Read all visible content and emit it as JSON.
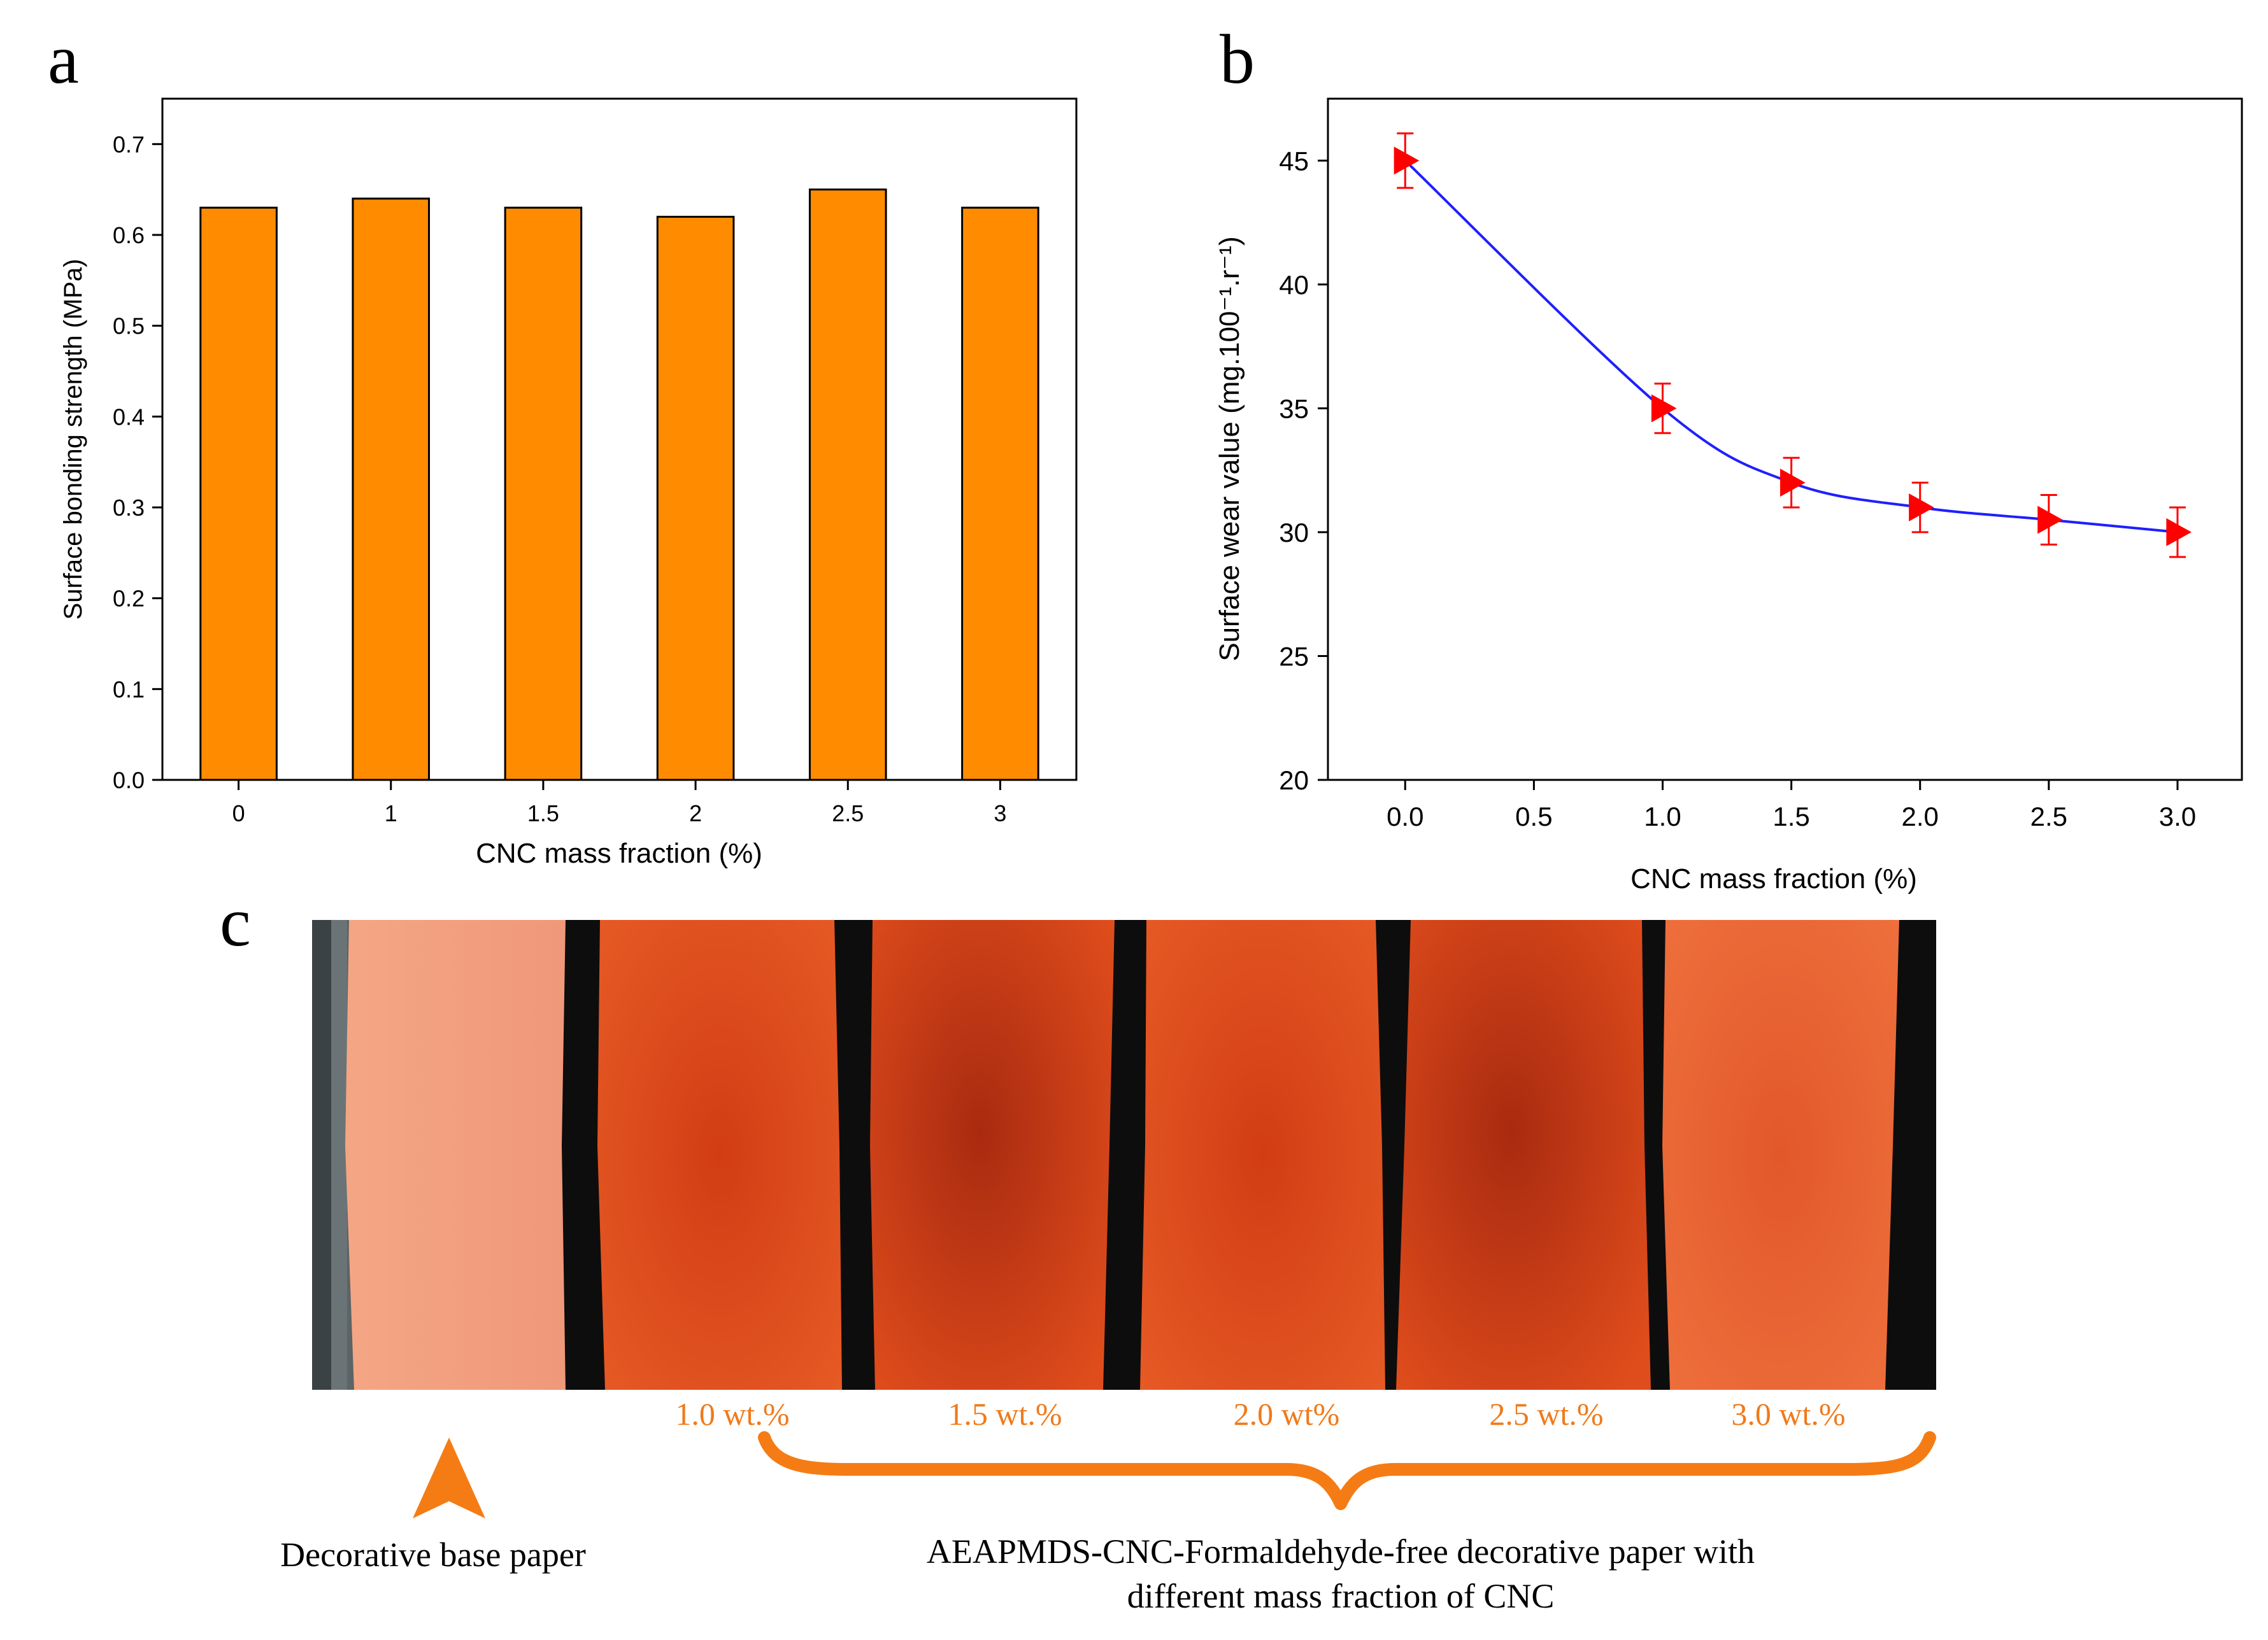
{
  "panels": {
    "a": {
      "letter": "a",
      "chart_data": {
        "type": "bar",
        "categories": [
          "0",
          "1",
          "1.5",
          "2",
          "2.5",
          "3"
        ],
        "values": [
          0.63,
          0.64,
          0.63,
          0.62,
          0.65,
          0.63
        ],
        "xlabel": "CNC mass fraction (%)",
        "ylabel": "Surface bonding strength (MPa)",
        "ylim": [
          0,
          0.75
        ],
        "yticks": [
          0.0,
          0.1,
          0.2,
          0.3,
          0.4,
          0.5,
          0.6,
          0.7
        ],
        "ytick_labels": [
          "0.0",
          "0.1",
          "0.2",
          "0.3",
          "0.4",
          "0.5",
          "0.6",
          "0.7"
        ],
        "bar_color": "#ff8c00",
        "grid": false
      }
    },
    "b": {
      "letter": "b",
      "chart_data": {
        "type": "line",
        "x": [
          0.0,
          1.0,
          1.5,
          2.0,
          2.5,
          3.0
        ],
        "y": [
          45,
          35,
          32,
          31,
          30.5,
          30
        ],
        "error": [
          1.1,
          1.0,
          1.0,
          1.0,
          1.0,
          1.0
        ],
        "xlabel": "CNC mass fraction (%)",
        "ylabel": "Surface wear value (mg.100⁻¹.r⁻¹)",
        "xlim": [
          -0.3,
          3.25
        ],
        "ylim": [
          20,
          47.5
        ],
        "xticks": [
          0.0,
          0.5,
          1.0,
          1.5,
          2.0,
          2.5,
          3.0
        ],
        "xtick_labels": [
          "0.0",
          "0.5",
          "1.0",
          "1.5",
          "2.0",
          "2.5",
          "3.0"
        ],
        "yticks": [
          20,
          25,
          30,
          35,
          40,
          45
        ],
        "ytick_labels": [
          "20",
          "25",
          "30",
          "35",
          "40",
          "45"
        ],
        "line_color": "#1f1fff",
        "marker_color": "#ff0000",
        "grid": false
      }
    },
    "c": {
      "letter": "c",
      "sample_labels": [
        "1.0 wt.%",
        "1.5 wt.%",
        "2.0 wt%",
        "2.5 wt.%",
        "3.0 wt.%"
      ],
      "base_caption": "Decorative base paper",
      "group_caption_line1": "AEAPMDS-CNC-Formaldehyde-free decorative paper with",
      "group_caption_line2": "different mass fraction of CNC",
      "accent_color": "#f57c14"
    }
  }
}
